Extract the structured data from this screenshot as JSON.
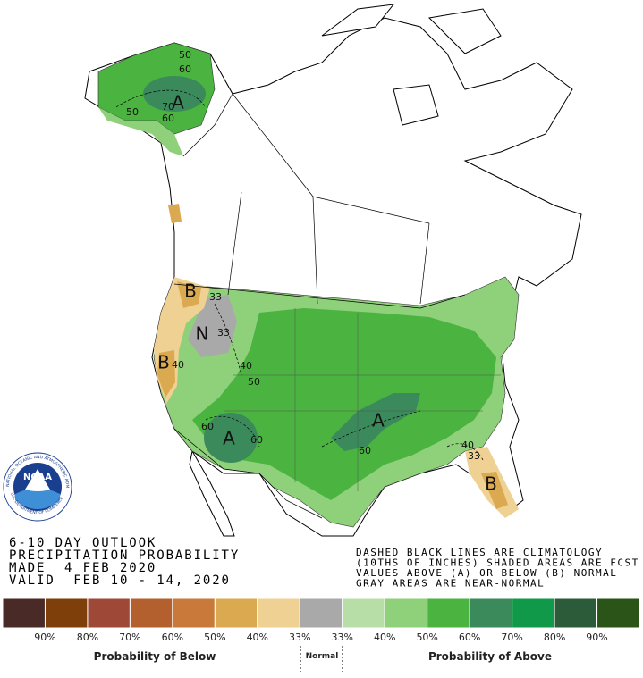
{
  "map": {
    "labels": [
      "A",
      "A",
      "A",
      "B",
      "B",
      "B",
      "N",
      "50",
      "60",
      "70",
      "50",
      "60",
      "33",
      "33",
      "40",
      "50",
      "60",
      "60",
      "60",
      "40",
      "33",
      "40"
    ]
  },
  "logo": {
    "name": "NOAA",
    "ring_top": "NATIONAL OCEANIC AND ATMOSPHERIC ADMINISTRATION",
    "ring_bottom": "U.S. DEPARTMENT OF COMMERCE"
  },
  "outlook": {
    "lines": [
      "6-10 DAY OUTLOOK",
      "PRECIPITATION PROBABILITY",
      "MADE  4 FEB 2020",
      "VALID  FEB 10 - 14, 2020"
    ]
  },
  "notes": {
    "lines": [
      "DASHED BLACK LINES ARE CLIMATOLOGY",
      "(10THS OF INCHES) SHADED AREAS ARE FCST",
      "VALUES ABOVE (A) OR BELOW (B) NORMAL",
      "GRAY AREAS ARE NEAR-NORMAL"
    ]
  },
  "legend": {
    "colors": [
      "#4a2a26",
      "#7f3f0a",
      "#9e4937",
      "#b35f2e",
      "#c97a3a",
      "#dba94f",
      "#efd193",
      "#a9a9a9",
      "#b8dea8",
      "#8fd07a",
      "#4bb33f",
      "#3a8a5b",
      "#0f9948",
      "#2c5b3a",
      "#2a5418"
    ],
    "labels": [
      "90%",
      "80%",
      "70%",
      "60%",
      "50%",
      "40%",
      "33%",
      "33%",
      "40%",
      "50%",
      "60%",
      "70%",
      "80%",
      "90%"
    ],
    "below": "Probability of Below",
    "normal": "Normal",
    "above": "Probability of Above"
  }
}
